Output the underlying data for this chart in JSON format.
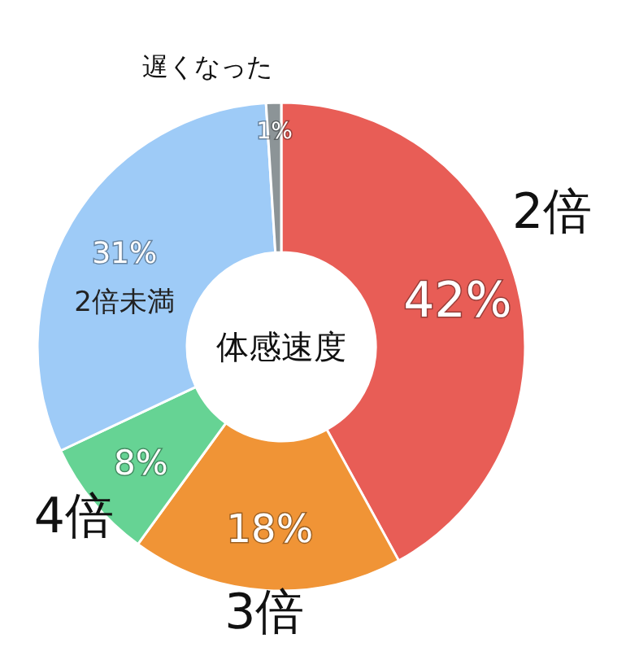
{
  "chart_data": {
    "type": "donut",
    "title": "体感速度",
    "categories": [
      "2倍",
      "3倍",
      "4倍",
      "2倍未満",
      "遅くなった"
    ],
    "values": [
      42,
      18,
      8,
      31,
      1
    ],
    "colors": [
      "#e85d56",
      "#f09436",
      "#66d394",
      "#9ecbf7",
      "#8c9497"
    ],
    "value_labels": [
      "42%",
      "18%",
      "8%",
      "31%",
      "1%"
    ]
  }
}
